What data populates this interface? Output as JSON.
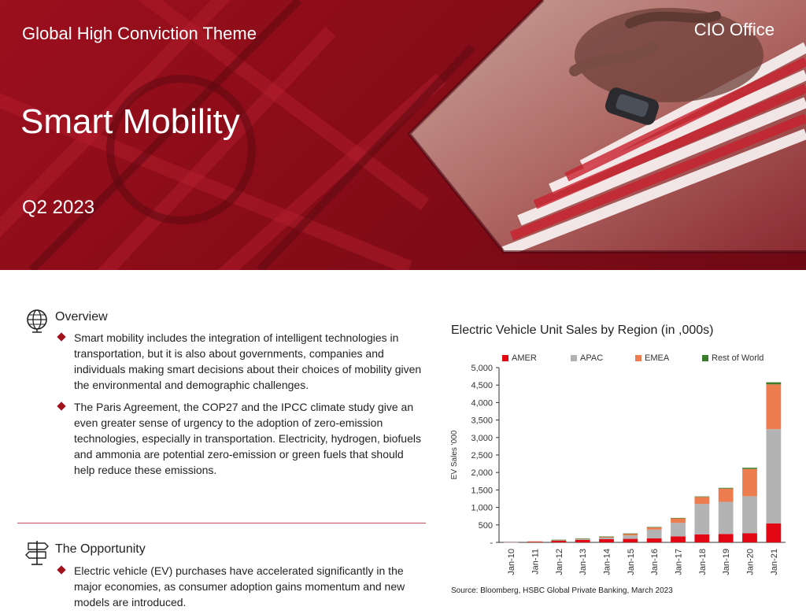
{
  "hero": {
    "theme_label": "Global High Conviction Theme",
    "title": "Smart Mobility",
    "quarter": "Q2 2023",
    "office": "CIO Office"
  },
  "overview": {
    "heading": "Overview",
    "bullets": [
      "Smart mobility includes the integration of intelligent technologies in transportation, but it is also about governments, companies and individuals making smart decisions about their choices of mobility given the environmental and demographic challenges.",
      "The Paris Agreement, the COP27 and the IPCC climate study give an even greater sense of urgency to the adoption of zero-emission technologies, especially in transportation. Electricity, hydrogen, biofuels and ammonia are potential zero-emission or green fuels that should help reduce these emissions."
    ]
  },
  "opportunity": {
    "heading": "The Opportunity",
    "bullets": [
      "Electric vehicle (EV) purchases have accelerated significantly in the major economies, as consumer adoption gains momentum and new models are introduced."
    ]
  },
  "colors": {
    "brand_red": "#a3111e",
    "amer": "#e30613",
    "apac": "#b3b3b3",
    "emea": "#ed7d4f",
    "row": "#3a7d2a"
  },
  "chart_data": {
    "type": "bar",
    "stacked": true,
    "title": "Electric Vehicle Unit Sales by Region (in ,000s)",
    "ylabel": "EV Sales '000",
    "xlabel": "",
    "ylim": [
      0,
      5000
    ],
    "yticks": [
      0,
      500,
      1000,
      1500,
      2000,
      2500,
      3000,
      3500,
      4000,
      4500,
      5000
    ],
    "ytick_labels": [
      "-",
      "500",
      "1,000",
      "1,500",
      "2,000",
      "2,500",
      "3,000",
      "3,500",
      "4,000",
      "4,500",
      "5,000"
    ],
    "categories": [
      "Jan-10",
      "Jan-11",
      "Jan-12",
      "Jan-13",
      "Jan-14",
      "Jan-15",
      "Jan-16",
      "Jan-17",
      "Jan-18",
      "Jan-19",
      "Jan-20",
      "Jan-21"
    ],
    "series": [
      {
        "name": "AMER",
        "color": "#e30613",
        "values": [
          1,
          18,
          45,
          70,
          90,
          100,
          115,
          170,
          230,
          240,
          260,
          540
        ]
      },
      {
        "name": "APAC",
        "color": "#b3b3b3",
        "values": [
          1,
          8,
          18,
          25,
          45,
          100,
          250,
          390,
          870,
          920,
          1060,
          2700
        ]
      },
      {
        "name": "EMEA",
        "color": "#ed7d4f",
        "values": [
          0,
          4,
          10,
          18,
          30,
          50,
          70,
          130,
          200,
          380,
          780,
          1280
        ]
      },
      {
        "name": "Rest of World",
        "color": "#3a7d2a",
        "values": [
          0,
          0,
          1,
          2,
          3,
          5,
          5,
          10,
          15,
          20,
          35,
          60
        ]
      }
    ],
    "legend_position": "top",
    "grid": false,
    "source": "Source: Bloomberg, HSBC Global Private Banking, March 2023"
  }
}
